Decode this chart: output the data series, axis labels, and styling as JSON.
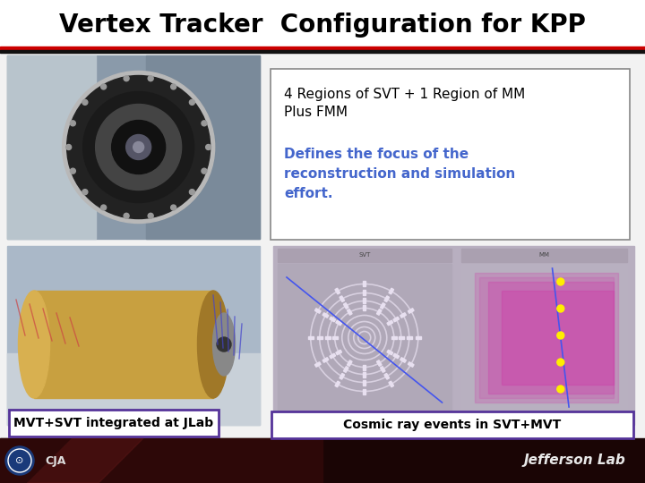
{
  "title": "Vertex Tracker  Configuration for KPP",
  "title_fontsize": 20,
  "title_fontweight": "bold",
  "bg_color": "#ffffff",
  "content_bg": "#f2f2f2",
  "header_red": "#cc0000",
  "header_black": "#111111",
  "footer_bg": "#2a0a0a",
  "text1_line1": "4 Regions of SVT + 1 Region of MM",
  "text1_line2": "Plus FMM",
  "text2": "Defines the focus of the\nreconstruction and simulation\neffort.",
  "text2_color": "#4466cc",
  "text_box_edge": "#888888",
  "caption_left": "MVT+SVT integrated at JLab",
  "caption_right": "Cosmic ray events in SVT+MVT",
  "caption_edge_left": "#553399",
  "caption_edge_right": "#553399",
  "caption_fontsize": 10,
  "caption_fontweight": "bold",
  "photo1_bg": "#8899aa",
  "photo1_center": "#111111",
  "photo1_ring1": "#222222",
  "photo1_ring2": "#555555",
  "photo1_ring3": "#777777",
  "photo2_bg": "#aabbcc",
  "photo2_cylinder": "#c8a040",
  "photo2_cylinder_dark": "#9a7830",
  "cosmic_bg": "#b8afc0",
  "cosmic_ring_color": "#d8d0e0",
  "cosmic_right_bg": "#c0b0c8",
  "cosmic_layer_color": "#cc44aa",
  "track_color": "#4455ee",
  "footer_text": "Jefferson Lab",
  "footer_text_color": "#e8e8e8",
  "footer_text_fontsize": 11,
  "jlab_circle_color": "#1a3a7a"
}
